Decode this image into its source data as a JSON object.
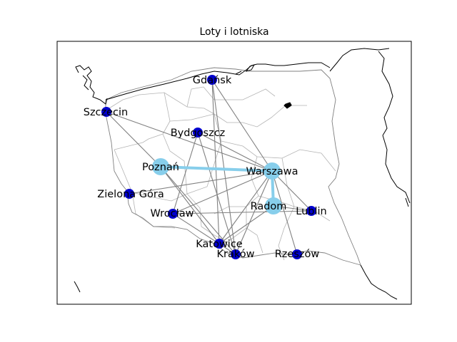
{
  "map": {
    "title": "Loty i lotniska",
    "colors": {
      "route": "#808080",
      "highlight_route": "#87ceeb",
      "airport": "#0000cd",
      "hub": "#87ceeb",
      "coast": "#000000",
      "border": "#b4b4b4"
    },
    "airports": [
      {
        "id": "gdansk",
        "name": "Gdańsk",
        "type": "airport"
      },
      {
        "id": "szczecin",
        "name": "Szczecin",
        "type": "airport"
      },
      {
        "id": "bydgoszcz",
        "name": "Bydgoszcz",
        "type": "airport"
      },
      {
        "id": "poznan",
        "name": "Poznań",
        "type": "hub"
      },
      {
        "id": "warszawa",
        "name": "Warszawa",
        "type": "hub"
      },
      {
        "id": "radom",
        "name": "Radom",
        "type": "hub"
      },
      {
        "id": "zielona",
        "name": "Zielona Góra",
        "type": "airport"
      },
      {
        "id": "wroclaw",
        "name": "Wrocław",
        "type": "airport"
      },
      {
        "id": "lublin",
        "name": "Lublin",
        "type": "airport"
      },
      {
        "id": "katowice",
        "name": "Katowice",
        "type": "airport"
      },
      {
        "id": "krakow",
        "name": "Kraków",
        "type": "airport"
      },
      {
        "id": "rzeszow",
        "name": "Rzeszów",
        "type": "airport"
      }
    ],
    "routes": [
      {
        "from": "gdansk",
        "to": "warszawa",
        "style": "normal"
      },
      {
        "from": "gdansk",
        "to": "krakow",
        "style": "normal"
      },
      {
        "from": "gdansk",
        "to": "katowice",
        "style": "normal"
      },
      {
        "from": "szczecin",
        "to": "warszawa",
        "style": "normal"
      },
      {
        "from": "szczecin",
        "to": "poznan",
        "style": "normal"
      },
      {
        "from": "bydgoszcz",
        "to": "warszawa",
        "style": "normal"
      },
      {
        "from": "bydgoszcz",
        "to": "wroclaw",
        "style": "normal"
      },
      {
        "from": "bydgoszcz",
        "to": "krakow",
        "style": "normal"
      },
      {
        "from": "poznan",
        "to": "warszawa",
        "style": "highlight"
      },
      {
        "from": "poznan",
        "to": "katowice",
        "style": "normal"
      },
      {
        "from": "poznan",
        "to": "krakow",
        "style": "normal"
      },
      {
        "from": "warszawa",
        "to": "radom",
        "style": "highlight"
      },
      {
        "from": "warszawa",
        "to": "zielona",
        "style": "normal"
      },
      {
        "from": "warszawa",
        "to": "wroclaw",
        "style": "normal"
      },
      {
        "from": "warszawa",
        "to": "lublin",
        "style": "normal"
      },
      {
        "from": "warszawa",
        "to": "katowice",
        "style": "normal"
      },
      {
        "from": "warszawa",
        "to": "krakow",
        "style": "normal"
      },
      {
        "from": "warszawa",
        "to": "rzeszow",
        "style": "normal"
      },
      {
        "from": "wroclaw",
        "to": "lublin",
        "style": "normal"
      },
      {
        "from": "wroclaw",
        "to": "krakow",
        "style": "normal"
      },
      {
        "from": "radom",
        "to": "katowice",
        "style": "normal"
      },
      {
        "from": "radom",
        "to": "lublin",
        "style": "normal"
      }
    ]
  }
}
